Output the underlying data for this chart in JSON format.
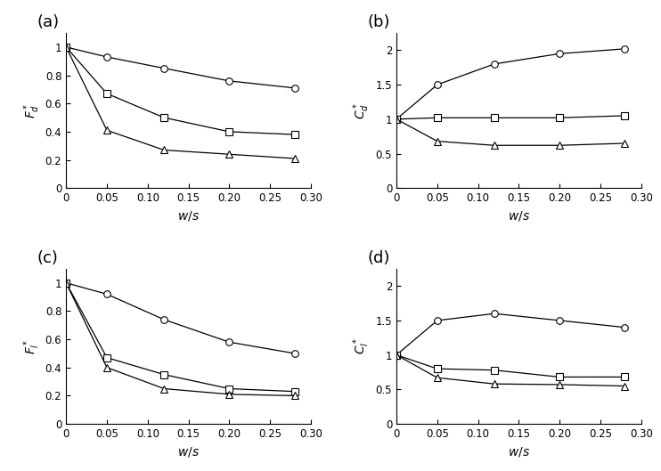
{
  "x": [
    0,
    0.05,
    0.12,
    0.2,
    0.28
  ],
  "Fd_circle": [
    1.0,
    0.93,
    0.85,
    0.76,
    0.71
  ],
  "Fd_square": [
    1.0,
    0.67,
    0.5,
    0.4,
    0.38
  ],
  "Fd_triangle": [
    1.0,
    0.41,
    0.27,
    0.24,
    0.21
  ],
  "Cd_circle": [
    1.0,
    1.5,
    1.8,
    1.95,
    2.02
  ],
  "Cd_square": [
    1.0,
    1.02,
    1.02,
    1.02,
    1.05
  ],
  "Cd_triangle": [
    1.0,
    0.68,
    0.62,
    0.62,
    0.65
  ],
  "Fl_circle": [
    1.0,
    0.92,
    0.74,
    0.58,
    0.5
  ],
  "Fl_square": [
    1.0,
    0.47,
    0.35,
    0.25,
    0.23
  ],
  "Fl_triangle": [
    1.0,
    0.4,
    0.25,
    0.21,
    0.2
  ],
  "Cl_circle": [
    1.0,
    1.5,
    1.6,
    1.5,
    1.4
  ],
  "Cl_square": [
    1.0,
    0.8,
    0.78,
    0.68,
    0.68
  ],
  "Cl_triangle": [
    1.0,
    0.67,
    0.58,
    0.57,
    0.55
  ],
  "ylabel_a": "$F_d^*$",
  "ylabel_b": "$C_d^*$",
  "ylabel_c": "$F_l^*$",
  "ylabel_d": "$C_l^*$",
  "xlabel": "$w/s$",
  "xlim": [
    0,
    0.3
  ],
  "ylim_a": [
    0,
    1.1
  ],
  "ylim_b": [
    0,
    2.25
  ],
  "ylim_c": [
    0,
    1.1
  ],
  "ylim_d": [
    0,
    2.25
  ],
  "yticks_a": [
    0,
    0.2,
    0.4,
    0.6,
    0.8,
    1.0
  ],
  "yticks_b": [
    0,
    0.5,
    1.0,
    1.5,
    2.0
  ],
  "yticks_c": [
    0,
    0.2,
    0.4,
    0.6,
    0.8,
    1.0
  ],
  "yticks_d": [
    0,
    0.5,
    1.0,
    1.5,
    2.0
  ],
  "xticks": [
    0,
    0.05,
    0.1,
    0.15,
    0.2,
    0.25,
    0.3
  ],
  "xtick_labels": [
    "0",
    "0.05",
    "0.10",
    "0.15",
    "0.20",
    "0.25",
    "0.30"
  ]
}
